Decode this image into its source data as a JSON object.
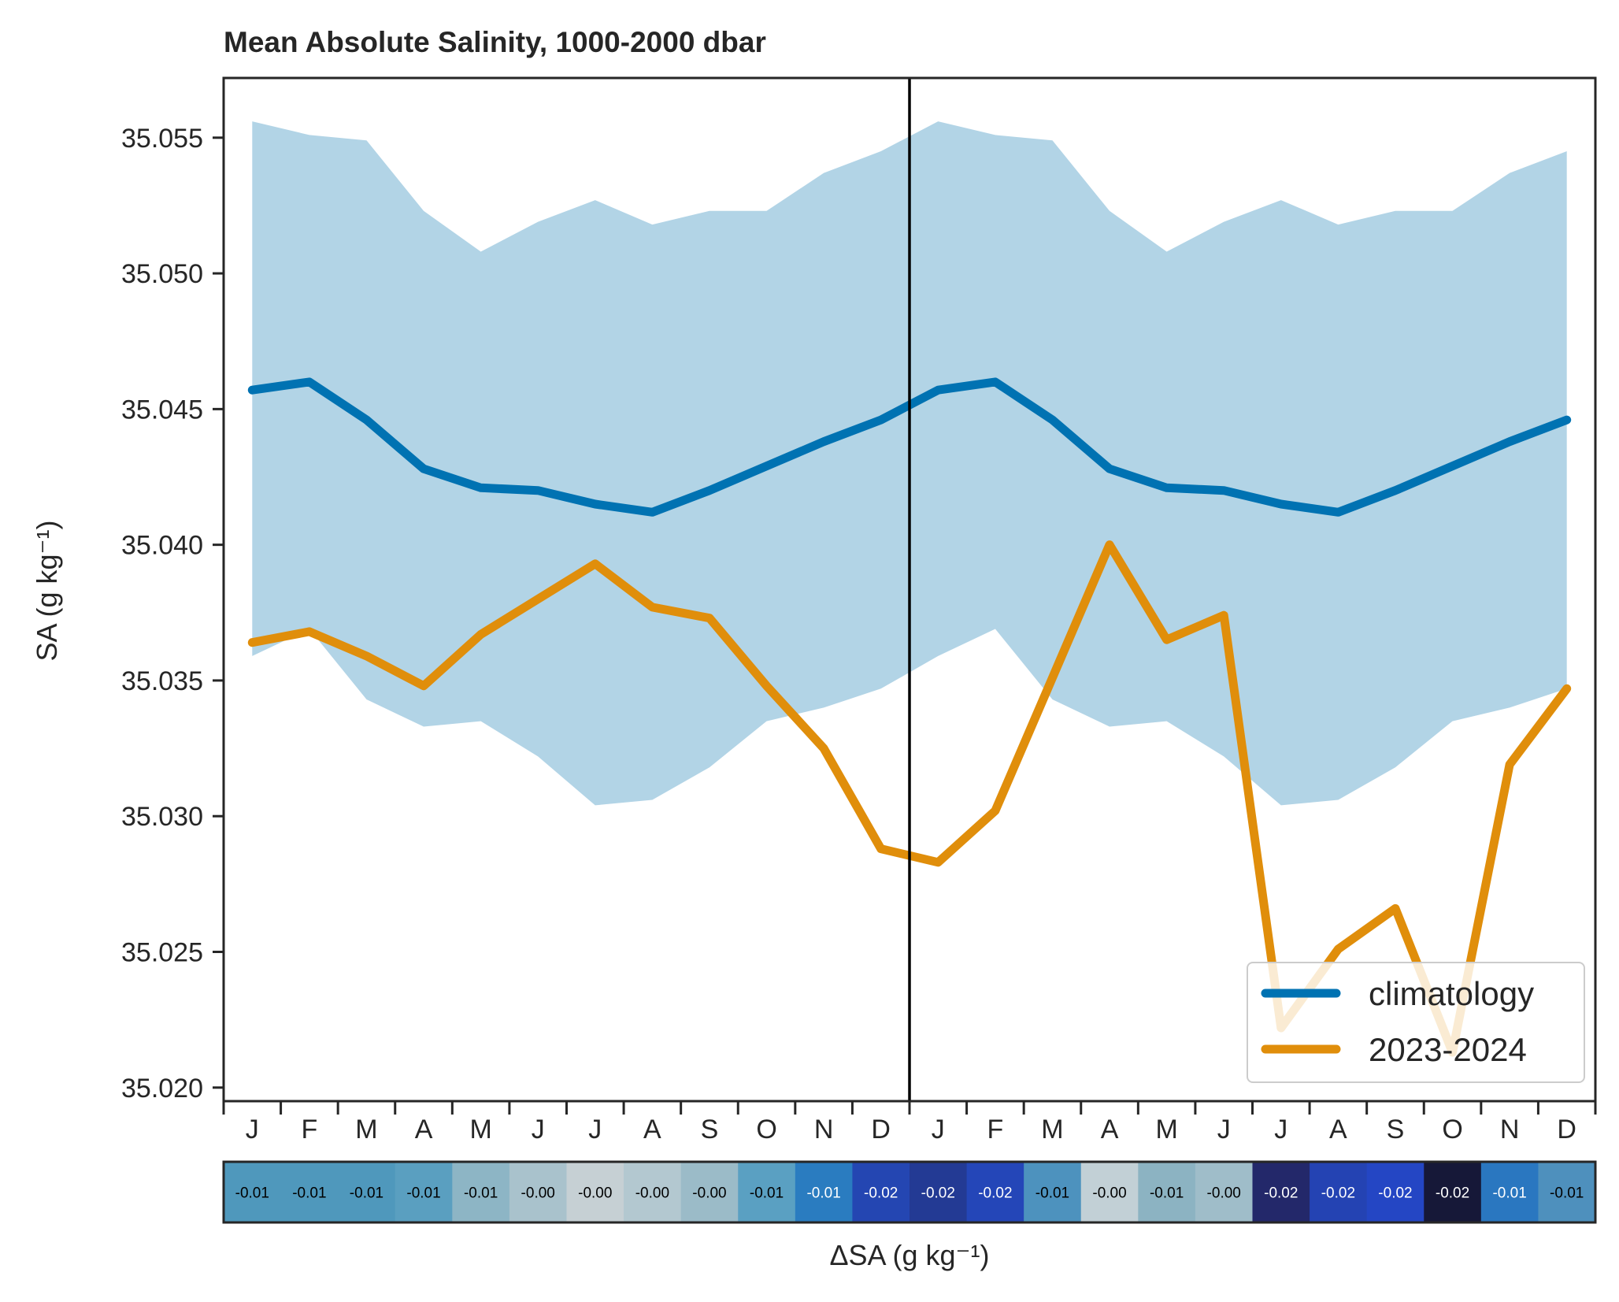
{
  "chart_data": {
    "type": "line",
    "title": "Mean Absolute Salinity, 1000-2000 dbar",
    "ylabel": "SA (g kg⁻¹)",
    "xlabel": "",
    "ylim": [
      35.0195,
      35.0572
    ],
    "yticks": [
      35.02,
      35.025,
      35.03,
      35.035,
      35.04,
      35.045,
      35.05,
      35.055
    ],
    "ytick_labels": [
      "35.020",
      "35.025",
      "35.030",
      "35.035",
      "35.040",
      "35.045",
      "35.050",
      "35.055"
    ],
    "categories": [
      "J",
      "F",
      "M",
      "A",
      "M",
      "J",
      "J",
      "A",
      "S",
      "O",
      "N",
      "D",
      "J",
      "F",
      "M",
      "A",
      "M",
      "J",
      "J",
      "A",
      "S",
      "O",
      "N",
      "D"
    ],
    "year_divider_after_index": 11,
    "grid": false,
    "legend_position": "lower right",
    "series": [
      {
        "name": "climatology",
        "color": "#0072b2",
        "values": [
          35.0457,
          35.046,
          35.0446,
          35.0428,
          35.0421,
          35.042,
          35.0415,
          35.0412,
          35.042,
          35.0429,
          35.0438,
          35.0446,
          35.0457,
          35.046,
          35.0446,
          35.0428,
          35.0421,
          35.042,
          35.0415,
          35.0412,
          35.042,
          35.0429,
          35.0438,
          35.0446
        ]
      },
      {
        "name": "2023-2024",
        "color": "#e08e0b",
        "values": [
          35.0364,
          35.0368,
          35.0359,
          35.0348,
          35.0367,
          35.038,
          35.0393,
          35.0377,
          35.0373,
          35.0348,
          35.0325,
          35.0288,
          35.0283,
          35.0302,
          35.0351,
          35.04,
          35.0365,
          35.0374,
          35.0222,
          35.0251,
          35.0266,
          35.0213,
          35.0319,
          35.0347
        ]
      }
    ],
    "band": {
      "color": "#b2d4e6",
      "upper": [
        35.0556,
        35.0551,
        35.0549,
        35.0523,
        35.0508,
        35.0519,
        35.0527,
        35.0518,
        35.0523,
        35.0523,
        35.0537,
        35.0545,
        35.0556,
        35.0551,
        35.0549,
        35.0523,
        35.0508,
        35.0519,
        35.0527,
        35.0518,
        35.0523,
        35.0523,
        35.0537,
        35.0545
      ],
      "lower": [
        35.0359,
        35.0369,
        35.0343,
        35.0333,
        35.0335,
        35.0322,
        35.0304,
        35.0306,
        35.0318,
        35.0335,
        35.034,
        35.0347,
        35.0359,
        35.0369,
        35.0343,
        35.0333,
        35.0335,
        35.0322,
        35.0304,
        35.0306,
        35.0318,
        35.0335,
        35.034,
        35.0347
      ]
    },
    "anomaly_strip": {
      "xlabel": "ΔSA (g kg⁻¹)",
      "labels": [
        "-0.01",
        "-0.01",
        "-0.01",
        "-0.01",
        "-0.01",
        "-0.00",
        "-0.00",
        "-0.00",
        "-0.00",
        "-0.01",
        "-0.01",
        "-0.02",
        "-0.02",
        "-0.02",
        "-0.01",
        "-0.00",
        "-0.01",
        "-0.00",
        "-0.02",
        "-0.02",
        "-0.02",
        "-0.02",
        "-0.01",
        "-0.01"
      ],
      "colors": [
        "#4f98bc",
        "#4f98bc",
        "#4f98bc",
        "#5a9fc0",
        "#8db5c5",
        "#a9c2cc",
        "#c6d0d4",
        "#b3c8d0",
        "#9bbbc8",
        "#5aa0c2",
        "#2a7cc0",
        "#2446b2",
        "#233a94",
        "#2446b8",
        "#4d92be",
        "#c2d0d6",
        "#8cb3c2",
        "#9fbdc9",
        "#23286a",
        "#2443b3",
        "#2446c4",
        "#161838",
        "#2a77c0",
        "#4e90bd"
      ],
      "text_colors": [
        "#000000",
        "#000000",
        "#000000",
        "#000000",
        "#000000",
        "#000000",
        "#000000",
        "#000000",
        "#000000",
        "#000000",
        "#ffffff",
        "#ffffff",
        "#ffffff",
        "#ffffff",
        "#000000",
        "#000000",
        "#000000",
        "#000000",
        "#ffffff",
        "#ffffff",
        "#ffffff",
        "#ffffff",
        "#ffffff",
        "#000000"
      ]
    }
  }
}
